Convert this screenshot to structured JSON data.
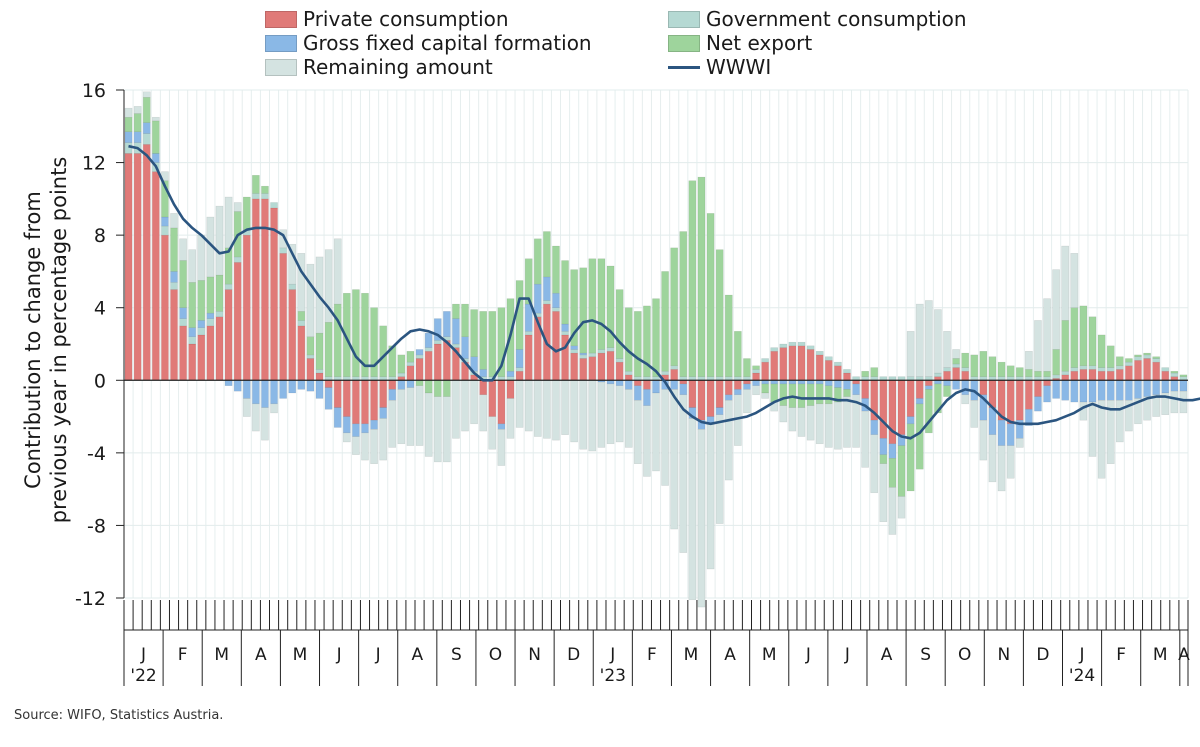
{
  "legend": {
    "private": "Private consumption",
    "government": "Government consumption",
    "gfcf": "Gross fixed capital formation",
    "net_export": "Net export",
    "remaining": "Remaining amount",
    "wwwi": "WWWI"
  },
  "colors": {
    "private": "#e07a78",
    "government": "#b5d9d3",
    "gfcf": "#8ab8e6",
    "net_export": "#9ed49c",
    "remaining": "#d4e3e1",
    "wwwi": "#2b5580"
  },
  "source": "Source: WIFO, Statistics Austria.",
  "chart_data": {
    "type": "bar",
    "stacked": true,
    "ylabel": "Contribution to change from previous year in percentage points",
    "ylim": [
      -12,
      16
    ],
    "yticks": [
      "16",
      "12",
      "8",
      "4",
      "0",
      "-4",
      "-8",
      "-12"
    ],
    "month_labels": [
      "J",
      "F",
      "M",
      "A",
      "M",
      "J",
      "J",
      "A",
      "S",
      "O",
      "N",
      "D",
      "J",
      "F",
      "M",
      "A",
      "M",
      "J",
      "J",
      "A",
      "S",
      "O",
      "N",
      "D",
      "J",
      "F",
      "M",
      "A"
    ],
    "year_labels": [
      {
        "month_index": 0,
        "text": "'22"
      },
      {
        "month_index": 12,
        "text": "'23"
      },
      {
        "month_index": 24,
        "text": "'24"
      }
    ],
    "weeks_per_month": 4.3,
    "series": [
      {
        "key": "private",
        "name": "Private consumption",
        "values": [
          12.5,
          12.5,
          13,
          11.5,
          8,
          5,
          3,
          2,
          2.5,
          3,
          3.5,
          5,
          6.5,
          8,
          10,
          10,
          9.5,
          7,
          5,
          3,
          1.2,
          0.4,
          -0.4,
          -1.5,
          -2,
          -2.4,
          -2.4,
          -2.2,
          -1.5,
          -0.5,
          0.2,
          0.8,
          1.2,
          1.6,
          2,
          2.2,
          1.8,
          1,
          0.3,
          -0.8,
          -2,
          -2.4,
          -1,
          0.5,
          2.5,
          3.5,
          4.2,
          3.8,
          2.5,
          1.5,
          1.2,
          1.3,
          1.5,
          1.6,
          1,
          0.3,
          -0.3,
          -0.5,
          0,
          0.3,
          0.6,
          -0.2,
          -1.5,
          -2.2,
          -2,
          -1.5,
          -0.8,
          -0.5,
          -0.2,
          0.4,
          1,
          1.6,
          1.8,
          1.9,
          1.9,
          1.7,
          1.4,
          1.1,
          0.8,
          0.4,
          -0.2,
          -1,
          -2.2,
          -3.2,
          -3.5,
          -3,
          -2,
          -1,
          -0.3,
          0.2,
          0.5,
          0.7,
          0.5,
          0,
          -0.8,
          -1.5,
          -2.2,
          -2.4,
          -2.2,
          -1.6,
          -0.9,
          -0.3,
          0.1,
          0.3,
          0.5,
          0.6,
          0.6,
          0.5,
          0.5,
          0.6,
          0.8,
          1.1,
          1.2,
          1,
          0.5,
          0.2,
          0
        ]
      },
      {
        "key": "government",
        "name": "Government consumption",
        "values": [
          0.6,
          0.6,
          0.6,
          0.5,
          0.5,
          0.4,
          0.4,
          0.4,
          0.4,
          0.4,
          0.3,
          0.3,
          0.3,
          0.3,
          0.3,
          0.3,
          0.3,
          0.3,
          0.3,
          0.3,
          0.2,
          0.2,
          0.2,
          0.2,
          0.2,
          0.2,
          0.2,
          0.2,
          0.2,
          0.2,
          0.2,
          0.2,
          0.2,
          0.2,
          0.2,
          0.2,
          0.2,
          0.2,
          0.2,
          0.2,
          0.2,
          0.2,
          0.2,
          0.2,
          0.2,
          0.2,
          0.2,
          0.2,
          0.2,
          0.2,
          0.2,
          0.2,
          0.2,
          0.2,
          0.2,
          0.2,
          0.2,
          0.2,
          0.2,
          0.2,
          0.2,
          0.2,
          0.2,
          0.2,
          0.2,
          0.2,
          0.2,
          0.2,
          0.2,
          0.2,
          0.2,
          0.2,
          0.2,
          0.2,
          0.2,
          0.2,
          0.2,
          0.2,
          0.2,
          0.2,
          0.2,
          0.2,
          0.2,
          0.2,
          0.2,
          0.2,
          0.2,
          0.2,
          0.2,
          0.2,
          0.2,
          0.2,
          0.2,
          0.2,
          0.2,
          0.2,
          0.2,
          0.2,
          0.2,
          0.2,
          0.2,
          0.2,
          0.2,
          0.2,
          0.2,
          0.2,
          0.2,
          0.2,
          0.2,
          0.2,
          0.2,
          0.2,
          0.2,
          0.2,
          0.2,
          0.2,
          0.2
        ]
      },
      {
        "key": "gfcf",
        "name": "Gross fixed capital formation",
        "values": [
          0.6,
          0.6,
          0.6,
          0.5,
          0.5,
          0.6,
          0.6,
          0.5,
          0.4,
          0.3,
          0,
          -0.3,
          -0.6,
          -1,
          -1.3,
          -1.5,
          -1.3,
          -1,
          -0.7,
          -0.5,
          -0.6,
          -1,
          -1.2,
          -1.1,
          -0.9,
          -0.7,
          -0.5,
          -0.5,
          -0.6,
          -0.6,
          -0.5,
          -0.4,
          0.3,
          0.8,
          1.2,
          1.4,
          1.4,
          1.2,
          0.8,
          0.4,
          0,
          -0.3,
          0.3,
          1,
          1.5,
          1.6,
          1.3,
          0.8,
          0.4,
          0.2,
          0.1,
          0,
          -0.1,
          -0.2,
          -0.3,
          -0.5,
          -0.8,
          -0.9,
          -0.7,
          -0.5,
          -0.5,
          -0.6,
          -0.6,
          -0.5,
          -0.4,
          -0.4,
          -0.3,
          -0.3,
          -0.3,
          -0.3,
          -0.2,
          -0.2,
          -0.2,
          -0.2,
          -0.2,
          -0.2,
          -0.2,
          -0.3,
          -0.4,
          -0.5,
          -0.6,
          -0.7,
          -0.8,
          -0.9,
          -0.8,
          -0.6,
          -0.4,
          -0.3,
          -0.2,
          -0.2,
          -0.3,
          -0.5,
          -0.8,
          -1.1,
          -1.4,
          -1.5,
          -1.4,
          -1.2,
          -1,
          -0.9,
          -0.8,
          -0.9,
          -1,
          -1.1,
          -1.2,
          -1.2,
          -1.2,
          -1.1,
          -1.1,
          -1.1,
          -1.1,
          -1,
          -0.9,
          -0.8,
          -0.7,
          -0.6,
          -0.6
        ]
      },
      {
        "key": "net_export",
        "name": "Net export",
        "values": [
          0.8,
          1,
          1.4,
          1.8,
          2,
          2.4,
          2.6,
          2.5,
          2.2,
          2,
          2,
          2,
          2.5,
          1.8,
          1,
          0.4,
          0,
          0,
          0,
          0.5,
          1,
          2,
          3,
          4,
          4.6,
          4.8,
          4.6,
          3.8,
          2.8,
          1.7,
          1,
          0.6,
          -0.3,
          -0.7,
          -0.9,
          -0.9,
          0.8,
          1.8,
          2.6,
          3.2,
          3.6,
          3.8,
          4,
          3.8,
          2.5,
          2.5,
          2.5,
          2.6,
          3.5,
          4.2,
          4.7,
          5.2,
          5,
          4.5,
          3.8,
          3.5,
          3.6,
          3.9,
          4.3,
          5.5,
          6.5,
          8,
          10.8,
          11,
          9,
          7,
          4.5,
          2.5,
          1,
          0.2,
          -0.5,
          -1,
          -1.2,
          -1.3,
          -1.3,
          -1.2,
          -1.1,
          -1,
          -0.8,
          -0.4,
          0,
          0.3,
          0.5,
          -0.5,
          -1.6,
          -2.8,
          -3.7,
          -3.6,
          -2.4,
          -1.6,
          -0.6,
          0.3,
          0.8,
          1.2,
          1.4,
          1.1,
          0.8,
          0.6,
          0.5,
          0.4,
          0.3,
          0.3,
          1.4,
          2.8,
          3.3,
          3.3,
          2.7,
          1.8,
          1.2,
          0.5,
          0.2,
          0.1,
          0.1,
          0.1,
          0,
          0.1,
          0.1,
          0.1
        ]
      },
      {
        "key": "remaining",
        "name": "Remaining amount",
        "values": [
          0.5,
          0.4,
          0.3,
          0.2,
          0.5,
          0.8,
          1.2,
          1.8,
          2.5,
          3.3,
          3.8,
          2.8,
          0.5,
          -1,
          -1.5,
          -1.8,
          -0.5,
          1,
          2.2,
          3.2,
          4,
          4.2,
          4,
          3.6,
          -0.5,
          -1,
          -1.5,
          -1.9,
          -2.3,
          -2.6,
          -3,
          -3.2,
          -3.3,
          -3.5,
          -3.6,
          -3.6,
          -3.2,
          -2.8,
          -2.4,
          -2,
          -1.8,
          -2,
          -2.2,
          -2.6,
          -2.8,
          -3.1,
          -3.2,
          -3.3,
          -3,
          -3.4,
          -3.8,
          -3.9,
          -3.6,
          -3.3,
          -3.1,
          -3.2,
          -3.5,
          -3.9,
          -4.3,
          -5.3,
          -7.7,
          -8.7,
          -10,
          -9.8,
          -8,
          -6,
          -4.4,
          -2.8,
          -1.3,
          -0.5,
          -0.3,
          -0.5,
          -0.9,
          -1.3,
          -1.6,
          -1.9,
          -2.2,
          -2.4,
          -2.6,
          -2.8,
          -2.9,
          -3.1,
          -3.2,
          -3.2,
          -2.6,
          -1.2,
          2.5,
          4,
          4.2,
          3.5,
          2,
          0.5,
          -0.5,
          -1.5,
          -2.2,
          -2.6,
          -2.5,
          -1.8,
          -0.5,
          1,
          2.8,
          4,
          4.4,
          4.1,
          3,
          -1,
          -3,
          -4.3,
          -3.5,
          -2.3,
          -1.7,
          -1.4,
          -1.3,
          -1.2,
          -1.2,
          -1.2,
          -1.2,
          -1.2,
          -1.2
        ]
      }
    ],
    "wwwi": [
      12.9,
      12.8,
      12.4,
      11.8,
      10.7,
      9.7,
      8.9,
      8.4,
      8,
      7.5,
      7,
      7.1,
      8,
      8.3,
      8.4,
      8.4,
      8.3,
      8,
      7,
      6,
      5.3,
      4.6,
      4,
      3.3,
      2.3,
      1.3,
      0.8,
      0.8,
      1.3,
      1.8,
      2.3,
      2.7,
      2.8,
      2.7,
      2.5,
      2.1,
      1.6,
      1,
      0.4,
      0,
      0,
      0.8,
      2.5,
      4.5,
      4.5,
      3.2,
      2,
      1.6,
      1.8,
      2.6,
      3.2,
      3.3,
      3.1,
      2.7,
      2.1,
      1.6,
      1.2,
      0.9,
      0.5,
      -0.1,
      -0.9,
      -1.6,
      -2,
      -2.3,
      -2.4,
      -2.3,
      -2.2,
      -2.1,
      -2,
      -1.8,
      -1.5,
      -1.2,
      -1,
      -0.9,
      -1,
      -1,
      -1,
      -1,
      -1.1,
      -1.1,
      -1.2,
      -1.4,
      -1.8,
      -2.3,
      -2.8,
      -3.1,
      -3.2,
      -2.9,
      -2.3,
      -1.7,
      -1.1,
      -0.7,
      -0.5,
      -0.6,
      -1,
      -1.5,
      -2,
      -2.3,
      -2.4,
      -2.4,
      -2.4,
      -2.3,
      -2.2,
      -2,
      -1.8,
      -1.5,
      -1.3,
      -1.5,
      -1.6,
      -1.6,
      -1.4,
      -1.2,
      -1,
      -0.9,
      -0.9,
      -1,
      -1.1,
      -1.1,
      -1
    ]
  }
}
